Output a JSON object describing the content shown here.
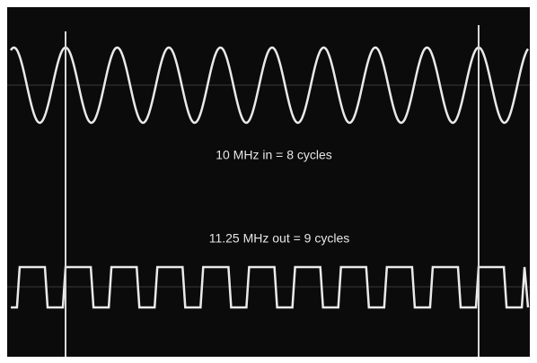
{
  "labels": {
    "input": "10 MHz in = 8 cycles",
    "output": "11.25 MHz out = 9 cycles"
  }
}
